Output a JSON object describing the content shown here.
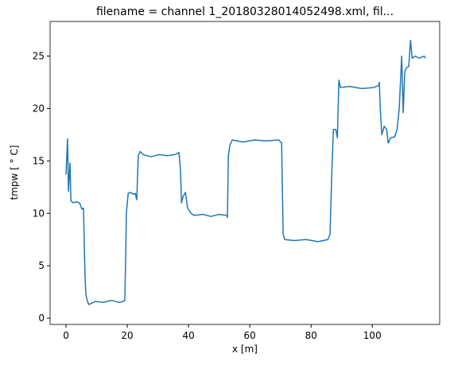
{
  "chart_data": {
    "type": "line",
    "title": "filename = channel 1_20180328014052498.xml, fil...",
    "xlabel": "x [m]",
    "ylabel": "tmpw [ ° C]",
    "x": [
      0,
      0.5,
      0.8,
      1.3,
      1.6,
      2.3,
      3.4,
      4.4,
      5.2,
      5.7,
      6.2,
      6.5,
      7.0,
      7.5,
      9.6,
      12.2,
      14.8,
      17.4,
      18.7,
      19.2,
      19.5,
      19.7,
      20.3,
      21,
      22.1,
      22.6,
      23.1,
      23.6,
      24.2,
      25.2,
      27.8,
      30.4,
      33,
      35.6,
      36.9,
      37.4,
      37.7,
      38.2,
      39,
      39.7,
      40.8,
      41.8,
      44.7,
      47.3,
      49.9,
      52.5,
      52.7,
      53,
      53.5,
      54.3,
      57.7,
      61.6,
      65.5,
      69.4,
      70.4,
      70.6,
      70.9,
      71.4,
      74.5,
      78.4,
      82.3,
      85.5,
      86.2,
      86.8,
      87.3,
      88.1,
      88.6,
      89.1,
      89.6,
      92.7,
      96.6,
      100.5,
      102.1,
      102.3,
      102.6,
      103.1,
      103.9,
      104.7,
      105.2,
      106,
      107.3,
      108.1,
      108.8,
      109.6,
      110.1,
      110.6,
      111.2,
      111.9,
      112.5,
      113,
      114,
      115.3,
      116.9,
      117.4
    ],
    "series": [
      {
        "name": "tmpw",
        "color": "#1f77b4",
        "values": [
          13.7,
          17.1,
          12.1,
          14.8,
          11.2,
          11,
          11.1,
          11,
          10.4,
          10.5,
          4,
          2.2,
          1.6,
          1.3,
          1.6,
          1.5,
          1.7,
          1.5,
          1.6,
          1.7,
          6,
          10,
          11.9,
          12,
          11.8,
          11.9,
          11.3,
          15.5,
          15.9,
          15.6,
          15.4,
          15.6,
          15.5,
          15.6,
          15.8,
          14,
          11,
          11.6,
          12,
          10.5,
          10,
          9.8,
          9.9,
          9.7,
          9.9,
          9.8,
          9.6,
          15.5,
          16.5,
          17,
          16.8,
          17,
          16.9,
          17,
          16.7,
          13,
          8,
          7.5,
          7.4,
          7.5,
          7.3,
          7.5,
          8,
          14,
          18,
          18,
          17.2,
          22.7,
          22,
          22.1,
          21.9,
          22,
          22.2,
          22.5,
          20,
          17.5,
          18.3,
          18,
          16.7,
          17.2,
          17.3,
          18,
          20,
          25,
          19.6,
          23.5,
          23.9,
          24,
          26.5,
          24.8,
          25,
          24.8,
          25,
          24.8
        ]
      }
    ],
    "xlim": [
      -5.2,
      122
    ],
    "xticks": [
      0,
      20,
      40,
      60,
      80,
      100
    ],
    "ylim": [
      -0.6,
      28.3
    ],
    "yticks": [
      0,
      5,
      10,
      15,
      20,
      25
    ]
  }
}
